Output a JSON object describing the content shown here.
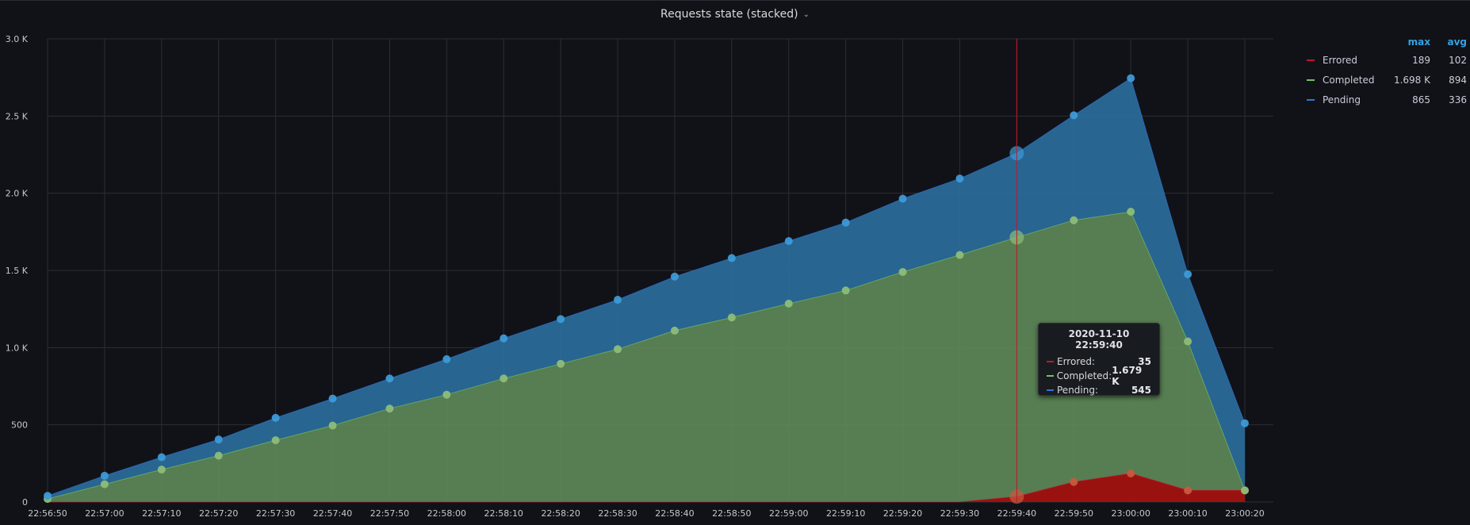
{
  "panel": {
    "title": "Requests state (stacked)"
  },
  "colors": {
    "errored": "#c4162a",
    "completed": "#73bf69",
    "pending": "#3274d9",
    "pending_fill": "#2b6f9e",
    "completed_fill": "#5f8a59",
    "errored_fill": "#a8130f",
    "pending_point": "#3d9ad6",
    "completed_point": "#8dbd78",
    "errored_point": "#c85a3f",
    "crosshair": "#c4162a",
    "grid": "#2c2e34",
    "tick": "#c7c8cc",
    "legend_header": "#33a2e5"
  },
  "legend": {
    "headers": {
      "max": "max",
      "avg": "avg"
    },
    "items": [
      {
        "name": "Errored",
        "max": "189",
        "avg": "102",
        "color": "#c4162a"
      },
      {
        "name": "Completed",
        "max": "1.698 K",
        "avg": "894",
        "color": "#73bf69"
      },
      {
        "name": "Pending",
        "max": "865",
        "avg": "336",
        "color": "#3274d9"
      }
    ]
  },
  "tooltip": {
    "time": "2020-11-10 22:59:40",
    "rows": [
      {
        "name": "Errored:",
        "value": "35",
        "color": "#c4162a"
      },
      {
        "name": "Completed:",
        "value": "1.679 K",
        "color": "#73bf69"
      },
      {
        "name": "Pending:",
        "value": "545",
        "color": "#3274d9"
      }
    ]
  },
  "chart_data": {
    "type": "area",
    "stacked": true,
    "title": "Requests state (stacked)",
    "x": [
      "22:56:50",
      "22:57:00",
      "22:57:10",
      "22:57:20",
      "22:57:30",
      "22:57:40",
      "22:57:50",
      "22:58:00",
      "22:58:10",
      "22:58:20",
      "22:58:30",
      "22:58:40",
      "22:58:50",
      "22:59:00",
      "22:59:10",
      "22:59:20",
      "22:59:30",
      "22:59:40",
      "22:59:50",
      "23:00:00",
      "23:00:10",
      "23:00:20"
    ],
    "series": [
      {
        "name": "Errored",
        "values": [
          0,
          0,
          0,
          0,
          0,
          0,
          0,
          0,
          0,
          0,
          0,
          0,
          0,
          0,
          0,
          0,
          0,
          35,
          130,
          185,
          75,
          75
        ]
      },
      {
        "name": "Completed",
        "values": [
          20,
          115,
          210,
          300,
          400,
          495,
          605,
          695,
          800,
          895,
          990,
          1110,
          1195,
          1285,
          1370,
          1490,
          1600,
          1679,
          1695,
          1695,
          965,
          0
        ]
      },
      {
        "name": "Pending",
        "values": [
          20,
          55,
          80,
          105,
          145,
          175,
          195,
          230,
          260,
          290,
          320,
          350,
          385,
          405,
          440,
          475,
          495,
          545,
          680,
          865,
          435,
          435
        ]
      }
    ],
    "yticks": [
      "0",
      "500",
      "1.0 K",
      "1.5 K",
      "2.0 K",
      "2.5 K",
      "3.0 K"
    ],
    "ylim": [
      0,
      3000
    ],
    "grid": true,
    "legend_position": "right",
    "hover_index": 17
  }
}
